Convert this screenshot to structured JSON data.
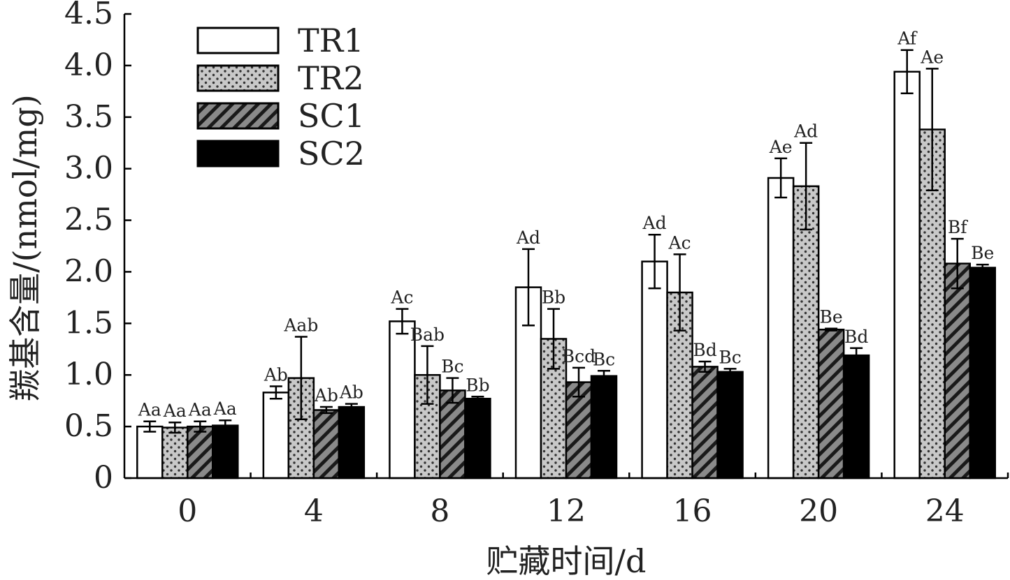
{
  "chart_data": {
    "type": "bar",
    "xlabel": "贮藏时间/d",
    "ylabel": "羰基含量/(nmol/mg)",
    "ylim": [
      0,
      4.5
    ],
    "yticks": [
      "0",
      "0.5",
      "1.0",
      "1.5",
      "2.0",
      "2.5",
      "3.0",
      "3.5",
      "4.0",
      "4.5"
    ],
    "categories": [
      "0",
      "4",
      "8",
      "12",
      "16",
      "20",
      "24"
    ],
    "legend_position": "top-left",
    "series": [
      {
        "name": "TR1",
        "pattern": "white",
        "values": [
          0.5,
          0.83,
          1.52,
          1.85,
          2.1,
          2.91,
          3.94
        ],
        "errors": [
          0.05,
          0.06,
          0.12,
          0.37,
          0.26,
          0.19,
          0.21
        ],
        "labels": [
          "Aa",
          "Ab",
          "Ac",
          "Ad",
          "Ad",
          "Ae",
          "Af"
        ]
      },
      {
        "name": "TR2",
        "pattern": "dots",
        "values": [
          0.49,
          0.97,
          1.0,
          1.35,
          1.8,
          2.83,
          3.38
        ],
        "errors": [
          0.05,
          0.4,
          0.28,
          0.29,
          0.37,
          0.42,
          0.59
        ],
        "labels": [
          "Aa",
          "Aab",
          "Bab",
          "Bb",
          "Ac",
          "Ad",
          "Ae"
        ]
      },
      {
        "name": "SC1",
        "pattern": "hatch",
        "values": [
          0.5,
          0.66,
          0.85,
          0.93,
          1.08,
          1.44,
          2.08
        ],
        "errors": [
          0.05,
          0.03,
          0.12,
          0.14,
          0.05,
          0.01,
          0.24
        ],
        "labels": [
          "Aa",
          "Ab",
          "Bc",
          "Bcd",
          "Bd",
          "Be",
          "Bf"
        ]
      },
      {
        "name": "SC2",
        "pattern": "black",
        "values": [
          0.51,
          0.69,
          0.77,
          0.99,
          1.03,
          1.19,
          2.04
        ],
        "errors": [
          0.05,
          0.03,
          0.02,
          0.05,
          0.03,
          0.07,
          0.03
        ],
        "labels": [
          "Aa",
          "Ab",
          "Bb",
          "Bc",
          "Bc",
          "Bd",
          "Be"
        ]
      }
    ],
    "colors": {
      "white_fill": "#ffffff",
      "dots_bg": "#c8c8c8",
      "dots_fg": "#333333",
      "hatch_bg": "#8a8a8a",
      "hatch_fg": "#1a1a1a",
      "black_fill": "#000000",
      "stroke": "#000000"
    }
  }
}
